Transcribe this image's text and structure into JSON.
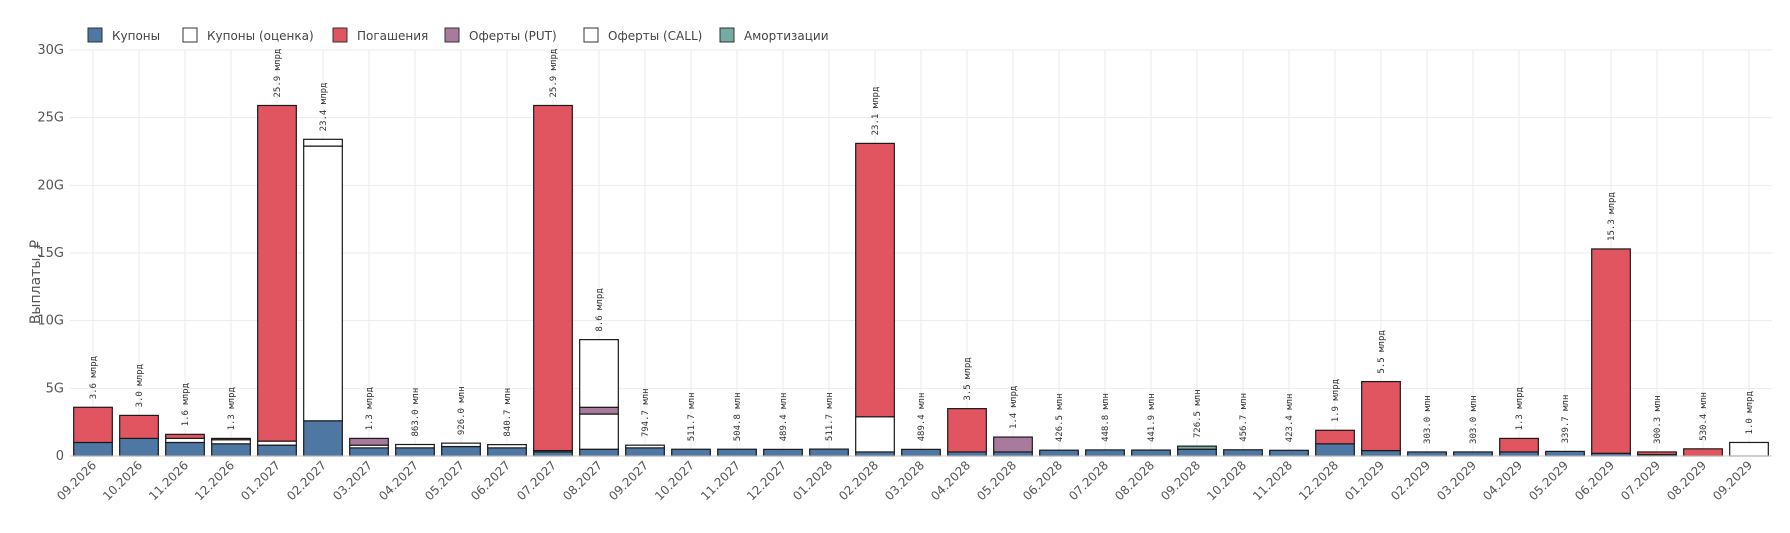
{
  "chart_data": {
    "type": "bar",
    "stacked": true,
    "ylabel": "Выплаты, ₽",
    "ylim": [
      0,
      30
    ],
    "yticks": [
      "0",
      "5G",
      "10G",
      "15G",
      "20G",
      "25G",
      "30G"
    ],
    "grid": true,
    "legend_position": "top-left",
    "legend": [
      {
        "name": "Купоны",
        "color": "#4e77a3",
        "hollow": false
      },
      {
        "name": "Купоны (оценка)",
        "color": "#ffffff",
        "hollow": true
      },
      {
        "name": "Погашения",
        "color": "#e0555f",
        "hollow": false
      },
      {
        "name": "Оферты (PUT)",
        "color": "#a87b9d",
        "hollow": false
      },
      {
        "name": "Оферты (CALL)",
        "color": "#ffffff",
        "hollow": true
      },
      {
        "name": "Амортизации",
        "color": "#76aaa4",
        "hollow": false
      }
    ],
    "categories": [
      "09.2026",
      "10.2026",
      "11.2026",
      "12.2026",
      "01.2027",
      "02.2027",
      "03.2027",
      "04.2027",
      "05.2027",
      "06.2027",
      "07.2027",
      "08.2027",
      "09.2027",
      "10.2027",
      "11.2027",
      "12.2027",
      "01.2028",
      "02.2028",
      "03.2028",
      "04.2028",
      "05.2028",
      "06.2028",
      "07.2028",
      "08.2028",
      "09.2028",
      "10.2028",
      "11.2028",
      "12.2028",
      "01.2029",
      "02.2029",
      "03.2029",
      "04.2029",
      "05.2029",
      "06.2029",
      "07.2029",
      "08.2029",
      "09.2029"
    ],
    "totals_text": [
      "3.6 млрд",
      "3.0 млрд",
      "1.6 млрд",
      "1.3 млрд",
      "25.9 млрд",
      "23.4 млрд",
      "1.3 млрд",
      "863.0 млн",
      "926.0 млн",
      "840.7 млн",
      "25.9 млрд",
      "8.6 млрд",
      "794.7 млн",
      "511.7 млн",
      "504.8 млн",
      "489.4 млн",
      "511.7 млн",
      "23.1 млрд",
      "489.4 млн",
      "3.5 млрд",
      "1.4 млрд",
      "426.5 млн",
      "448.8 млн",
      "441.9 млн",
      "726.5 млн",
      "456.7 млн",
      "423.4 млн",
      "1.9 млрд",
      "5.5 млрд",
      "303.0 млн",
      "303.0 млн",
      "1.3 млрд",
      "339.7 млн",
      "15.3 млрд",
      "300.3 млн",
      "530.4 млн",
      "1.0 млрд"
    ],
    "series": [
      {
        "name": "Купоны",
        "values": [
          1.0,
          1.3,
          1.0,
          0.9,
          0.8,
          2.6,
          0.6,
          0.6,
          0.7,
          0.6,
          0.3,
          0.5,
          0.6,
          0.5,
          0.5,
          0.49,
          0.51,
          0.3,
          0.49,
          0.3,
          0.3,
          0.43,
          0.45,
          0.44,
          0.5,
          0.46,
          0.42,
          0.9,
          0.4,
          0.3,
          0.3,
          0.3,
          0.34,
          0.2,
          0.1,
          0.0,
          0.0
        ]
      },
      {
        "name": "Купоны (оценка)",
        "values": [
          0.0,
          0.0,
          0.3,
          0.3,
          0.3,
          20.3,
          0.2,
          0.25,
          0.25,
          0.24,
          0.1,
          2.6,
          0.2,
          0.0,
          0.0,
          0.0,
          0.0,
          2.6,
          0.0,
          0.0,
          0.0,
          0.0,
          0.0,
          0.0,
          0.0,
          0.0,
          0.0,
          0.0,
          0.0,
          0.0,
          0.0,
          0.0,
          0.0,
          0.0,
          0.0,
          0.0,
          1.0
        ]
      },
      {
        "name": "Погашения",
        "values": [
          2.6,
          1.7,
          0.3,
          0.1,
          24.8,
          0.0,
          0.0,
          0.0,
          0.0,
          0.0,
          25.5,
          0.0,
          0.0,
          0.0,
          0.0,
          0.0,
          0.0,
          20.2,
          0.0,
          3.2,
          0.0,
          0.0,
          0.0,
          0.0,
          0.0,
          0.0,
          0.0,
          1.0,
          5.1,
          0.0,
          0.0,
          1.0,
          0.0,
          15.1,
          0.2,
          0.53,
          0.0
        ]
      },
      {
        "name": "Оферты (PUT)",
        "values": [
          0.0,
          0.0,
          0.0,
          0.0,
          0.0,
          0.0,
          0.5,
          0.0,
          0.0,
          0.0,
          0.0,
          0.5,
          0.0,
          0.0,
          0.0,
          0.0,
          0.0,
          0.0,
          0.0,
          0.0,
          1.1,
          0.0,
          0.0,
          0.0,
          0.0,
          0.0,
          0.0,
          0.0,
          0.0,
          0.0,
          0.0,
          0.0,
          0.0,
          0.0,
          0.0,
          0.0,
          0.0
        ]
      },
      {
        "name": "Оферты (CALL)",
        "values": [
          0.0,
          0.0,
          0.0,
          0.0,
          0.0,
          0.5,
          0.0,
          0.0,
          0.0,
          0.0,
          0.0,
          5.0,
          0.0,
          0.0,
          0.0,
          0.0,
          0.0,
          0.0,
          0.0,
          0.0,
          0.0,
          0.0,
          0.0,
          0.0,
          0.0,
          0.0,
          0.0,
          0.0,
          0.0,
          0.0,
          0.0,
          0.0,
          0.0,
          0.0,
          0.0,
          0.0,
          0.0
        ]
      },
      {
        "name": "Амортизации",
        "values": [
          0.0,
          0.0,
          0.0,
          0.0,
          0.0,
          0.0,
          0.0,
          0.0,
          0.0,
          0.0,
          0.0,
          0.0,
          0.0,
          0.0,
          0.0,
          0.0,
          0.0,
          0.0,
          0.0,
          0.0,
          0.0,
          0.0,
          0.0,
          0.0,
          0.23,
          0.0,
          0.0,
          0.0,
          0.0,
          0.0,
          0.0,
          0.0,
          0.0,
          0.0,
          0.0,
          0.0,
          0.0
        ]
      }
    ]
  }
}
